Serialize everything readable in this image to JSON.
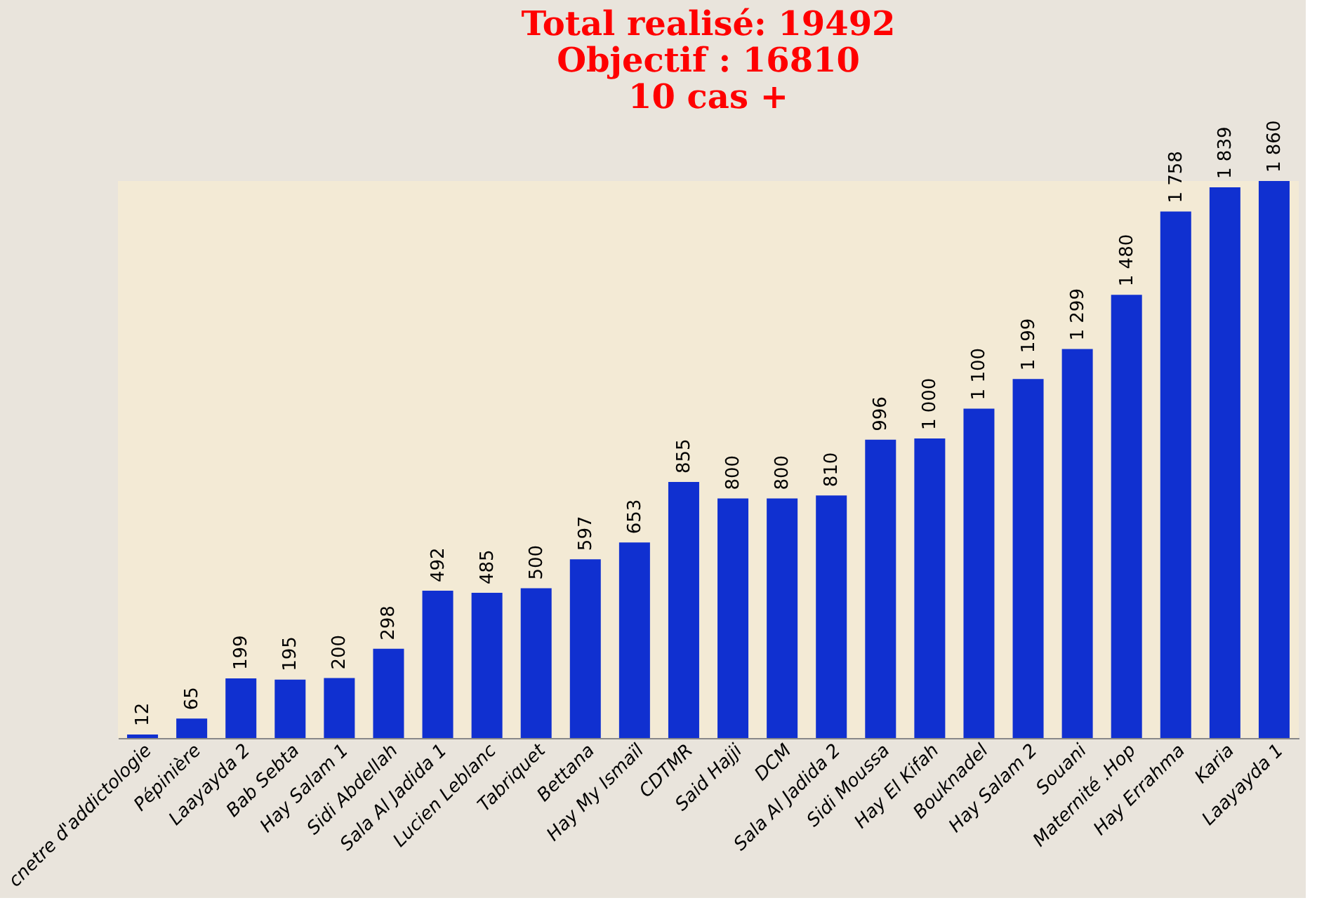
{
  "chart_data": {
    "type": "bar",
    "title": [
      "Total realisé: 19492",
      "Objectif : 16810",
      "10 cas +"
    ],
    "categories": [
      "cnetre d'addictologie",
      "Pépinière",
      "Laayayda 2",
      "Bab Sebta",
      "Hay Salam 1",
      "Sidi Abdellah",
      "Sala Al Jadida 1",
      "Lucien Leblanc",
      "Tabriquet",
      "Bettana",
      "Hay My Ismaïl",
      "CDTMR",
      "Said Hajji",
      "DCM",
      "Sala Al Jadida 2",
      "Sidi Moussa",
      "Hay El Kifah",
      "Bouknadel",
      "Hay Salam 2",
      "Souani",
      "Maternité .Hop",
      "Hay Errahma",
      "Karia",
      "Laayayda 1"
    ],
    "values": [
      12,
      65,
      199,
      195,
      200,
      298,
      492,
      485,
      500,
      597,
      653,
      855,
      800,
      800,
      810,
      996,
      1000,
      1100,
      1199,
      1299,
      1480,
      1758,
      1839,
      1860
    ],
    "value_labels": [
      "12",
      "65",
      "199",
      "195",
      "200",
      "298",
      "492",
      "485",
      "500",
      "597",
      "653",
      "855",
      "800",
      "800",
      "810",
      "996",
      "1 000",
      "1 100",
      "1 199",
      "1 299",
      "1 480",
      "1 758",
      "1 839",
      "1 860"
    ],
    "color": "#1030d0",
    "grid": false
  }
}
